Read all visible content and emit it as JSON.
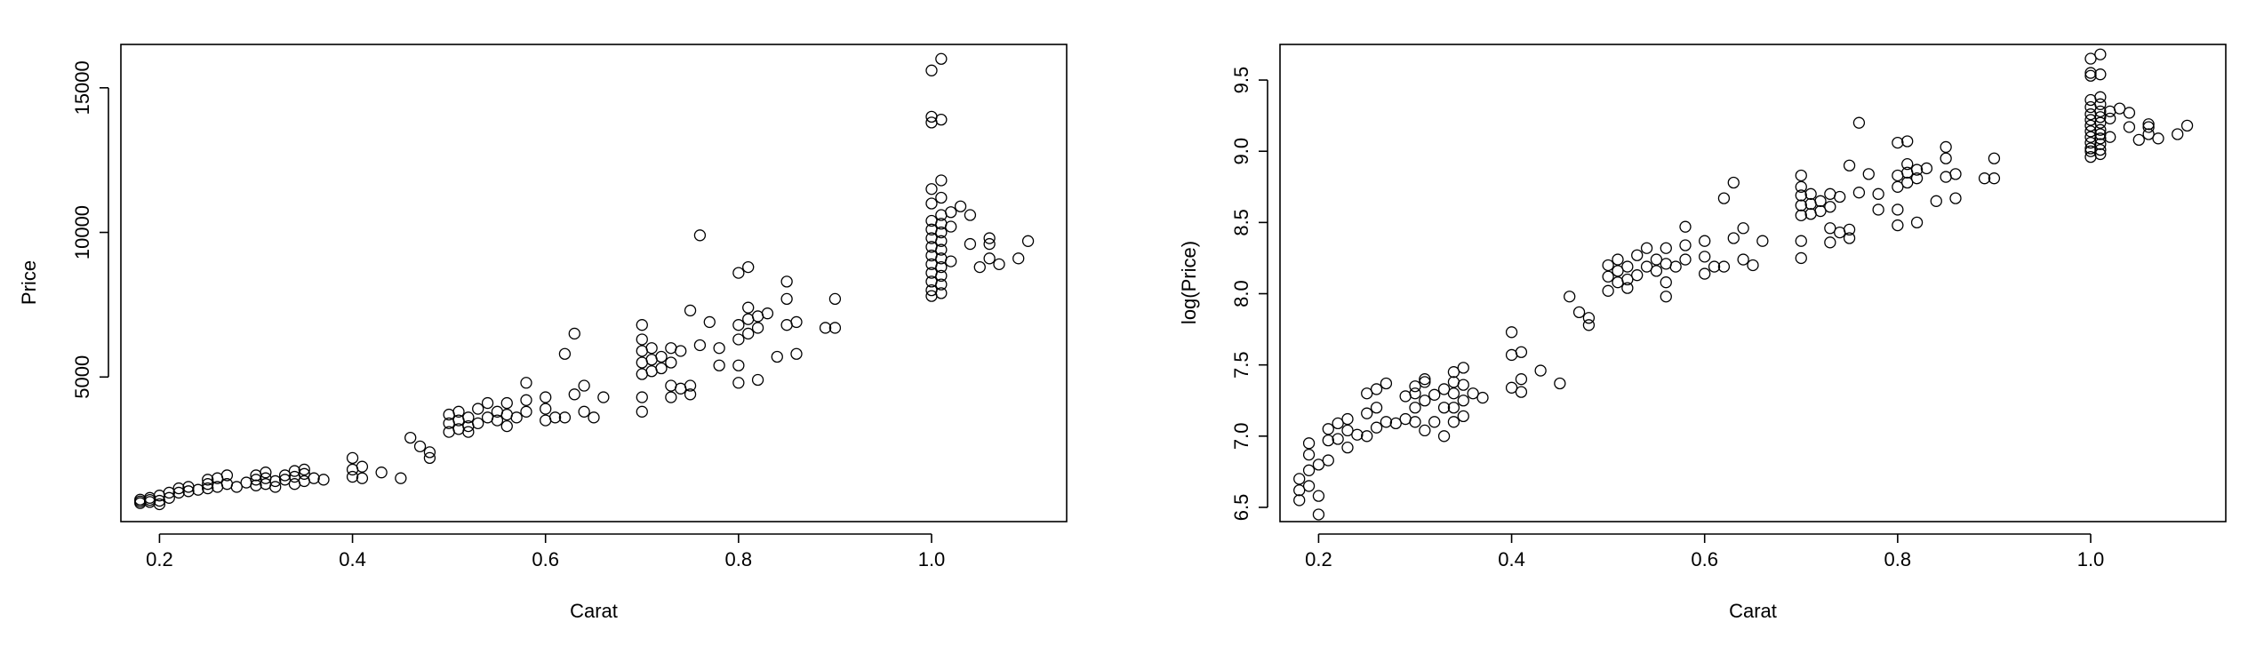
{
  "chart_data": [
    {
      "type": "scatter",
      "title": "",
      "xlabel": "Carat",
      "ylabel": "Price",
      "xlim": [
        0.16,
        1.14
      ],
      "ylim": [
        0,
        16500
      ],
      "xticks": [
        "0.2",
        "0.4",
        "0.6",
        "0.8",
        "1.0"
      ],
      "yticks": [
        "5000",
        "10000",
        "15000"
      ],
      "grid": false,
      "points": [
        [
          0.18,
          700
        ],
        [
          0.18,
          640
        ],
        [
          0.18,
          760
        ],
        [
          0.19,
          680
        ],
        [
          0.19,
          820
        ],
        [
          0.19,
          750
        ],
        [
          0.2,
          720
        ],
        [
          0.2,
          600
        ],
        [
          0.2,
          900
        ],
        [
          0.21,
          1000
        ],
        [
          0.21,
          820
        ],
        [
          0.22,
          1150
        ],
        [
          0.22,
          1000
        ],
        [
          0.23,
          1200
        ],
        [
          0.23,
          1050
        ],
        [
          0.24,
          1100
        ],
        [
          0.25,
          1150
        ],
        [
          0.25,
          1300
        ],
        [
          0.25,
          1450
        ],
        [
          0.26,
          1200
        ],
        [
          0.26,
          1500
        ],
        [
          0.27,
          1300
        ],
        [
          0.27,
          1600
        ],
        [
          0.28,
          1200
        ],
        [
          0.29,
          1350
        ],
        [
          0.3,
          1250
        ],
        [
          0.3,
          1450
        ],
        [
          0.3,
          1600
        ],
        [
          0.31,
          1300
        ],
        [
          0.31,
          1500
        ],
        [
          0.31,
          1700
        ],
        [
          0.32,
          1400
        ],
        [
          0.32,
          1200
        ],
        [
          0.33,
          1450
        ],
        [
          0.33,
          1600
        ],
        [
          0.34,
          1300
        ],
        [
          0.34,
          1550
        ],
        [
          0.34,
          1750
        ],
        [
          0.35,
          1400
        ],
        [
          0.35,
          1650
        ],
        [
          0.35,
          1800
        ],
        [
          0.36,
          1500
        ],
        [
          0.37,
          1450
        ],
        [
          0.4,
          1550
        ],
        [
          0.4,
          1800
        ],
        [
          0.4,
          2200
        ],
        [
          0.41,
          1500
        ],
        [
          0.41,
          1900
        ],
        [
          0.43,
          1700
        ],
        [
          0.45,
          1500
        ],
        [
          0.46,
          2900
        ],
        [
          0.47,
          2600
        ],
        [
          0.48,
          2400
        ],
        [
          0.48,
          2200
        ],
        [
          0.5,
          3100
        ],
        [
          0.5,
          3400
        ],
        [
          0.5,
          3700
        ],
        [
          0.51,
          3200
        ],
        [
          0.51,
          3500
        ],
        [
          0.51,
          3800
        ],
        [
          0.52,
          3100
        ],
        [
          0.52,
          3300
        ],
        [
          0.52,
          3600
        ],
        [
          0.53,
          3400
        ],
        [
          0.53,
          3900
        ],
        [
          0.54,
          3600
        ],
        [
          0.54,
          4100
        ],
        [
          0.55,
          3500
        ],
        [
          0.55,
          3800
        ],
        [
          0.56,
          3300
        ],
        [
          0.56,
          3700
        ],
        [
          0.56,
          4100
        ],
        [
          0.57,
          3600
        ],
        [
          0.58,
          3800
        ],
        [
          0.58,
          4200
        ],
        [
          0.58,
          4800
        ],
        [
          0.6,
          3500
        ],
        [
          0.6,
          3900
        ],
        [
          0.6,
          4300
        ],
        [
          0.61,
          3600
        ],
        [
          0.62,
          3600
        ],
        [
          0.62,
          5800
        ],
        [
          0.63,
          4400
        ],
        [
          0.63,
          6500
        ],
        [
          0.64,
          4700
        ],
        [
          0.64,
          3800
        ],
        [
          0.65,
          3600
        ],
        [
          0.66,
          4300
        ],
        [
          0.7,
          3800
        ],
        [
          0.7,
          4300
        ],
        [
          0.7,
          5100
        ],
        [
          0.7,
          5500
        ],
        [
          0.7,
          5900
        ],
        [
          0.7,
          6300
        ],
        [
          0.7,
          6800
        ],
        [
          0.71,
          5200
        ],
        [
          0.71,
          5600
        ],
        [
          0.71,
          6000
        ],
        [
          0.72,
          5300
        ],
        [
          0.72,
          5700
        ],
        [
          0.73,
          4300
        ],
        [
          0.73,
          4700
        ],
        [
          0.73,
          5500
        ],
        [
          0.73,
          6000
        ],
        [
          0.74,
          4600
        ],
        [
          0.74,
          5900
        ],
        [
          0.75,
          4400
        ],
        [
          0.75,
          4700
        ],
        [
          0.75,
          7300
        ],
        [
          0.76,
          6100
        ],
        [
          0.76,
          9900
        ],
        [
          0.77,
          6900
        ],
        [
          0.78,
          5400
        ],
        [
          0.78,
          6000
        ],
        [
          0.8,
          4800
        ],
        [
          0.8,
          5400
        ],
        [
          0.8,
          6300
        ],
        [
          0.8,
          6800
        ],
        [
          0.8,
          8600
        ],
        [
          0.81,
          6500
        ],
        [
          0.81,
          7000
        ],
        [
          0.81,
          7400
        ],
        [
          0.81,
          8800
        ],
        [
          0.82,
          4900
        ],
        [
          0.82,
          6700
        ],
        [
          0.82,
          7100
        ],
        [
          0.83,
          7200
        ],
        [
          0.84,
          5700
        ],
        [
          0.85,
          6800
        ],
        [
          0.85,
          7700
        ],
        [
          0.85,
          8300
        ],
        [
          0.86,
          5800
        ],
        [
          0.86,
          6900
        ],
        [
          0.89,
          6700
        ],
        [
          0.9,
          6700
        ],
        [
          0.9,
          7700
        ],
        [
          1.0,
          7800
        ],
        [
          1.0,
          8000
        ],
        [
          1.0,
          8300
        ],
        [
          1.0,
          8600
        ],
        [
          1.0,
          8900
        ],
        [
          1.0,
          9200
        ],
        [
          1.0,
          9500
        ],
        [
          1.0,
          9800
        ],
        [
          1.0,
          10100
        ],
        [
          1.0,
          10400
        ],
        [
          1.0,
          11000
        ],
        [
          1.0,
          11500
        ],
        [
          1.0,
          13800
        ],
        [
          1.0,
          14000
        ],
        [
          1.0,
          15600
        ],
        [
          1.01,
          7900
        ],
        [
          1.01,
          8200
        ],
        [
          1.01,
          8500
        ],
        [
          1.01,
          8800
        ],
        [
          1.01,
          9100
        ],
        [
          1.01,
          9400
        ],
        [
          1.01,
          9700
        ],
        [
          1.01,
          10000
        ],
        [
          1.01,
          10300
        ],
        [
          1.01,
          10600
        ],
        [
          1.01,
          11200
        ],
        [
          1.01,
          11800
        ],
        [
          1.01,
          13900
        ],
        [
          1.01,
          16000
        ],
        [
          1.02,
          9000
        ],
        [
          1.02,
          10200
        ],
        [
          1.02,
          10700
        ],
        [
          1.03,
          10900
        ],
        [
          1.04,
          10600
        ],
        [
          1.04,
          9600
        ],
        [
          1.05,
          8800
        ],
        [
          1.06,
          9800
        ],
        [
          1.06,
          9600
        ],
        [
          1.06,
          9100
        ],
        [
          1.07,
          8900
        ],
        [
          1.09,
          9100
        ],
        [
          1.1,
          9700
        ]
      ]
    },
    {
      "type": "scatter",
      "title": "",
      "xlabel": "Carat",
      "ylabel": "log(Price)",
      "xlim": [
        0.16,
        1.14
      ],
      "ylim": [
        6.4,
        9.75
      ],
      "xticks": [
        "0.2",
        "0.4",
        "0.6",
        "0.8",
        "1.0"
      ],
      "yticks": [
        "6.5",
        "7.0",
        "7.5",
        "8.0",
        "8.5",
        "9.0",
        "9.5"
      ],
      "grid": false,
      "points": [
        [
          0.18,
          6.55
        ],
        [
          0.18,
          6.62
        ],
        [
          0.18,
          6.7
        ],
        [
          0.19,
          6.65
        ],
        [
          0.19,
          6.76
        ],
        [
          0.19,
          6.87
        ],
        [
          0.19,
          6.95
        ],
        [
          0.2,
          6.45
        ],
        [
          0.2,
          6.58
        ],
        [
          0.2,
          6.8
        ],
        [
          0.21,
          6.83
        ],
        [
          0.21,
          6.97
        ],
        [
          0.21,
          7.05
        ],
        [
          0.22,
          6.98
        ],
        [
          0.22,
          7.09
        ],
        [
          0.23,
          6.92
        ],
        [
          0.23,
          7.04
        ],
        [
          0.23,
          7.12
        ],
        [
          0.24,
          7.01
        ],
        [
          0.25,
          7.0
        ],
        [
          0.25,
          7.16
        ],
        [
          0.25,
          7.3
        ],
        [
          0.26,
          7.06
        ],
        [
          0.26,
          7.2
        ],
        [
          0.26,
          7.33
        ],
        [
          0.27,
          7.1
        ],
        [
          0.27,
          7.37
        ],
        [
          0.28,
          7.09
        ],
        [
          0.29,
          7.12
        ],
        [
          0.29,
          7.28
        ],
        [
          0.3,
          7.1
        ],
        [
          0.3,
          7.2
        ],
        [
          0.3,
          7.3
        ],
        [
          0.3,
          7.35
        ],
        [
          0.31,
          7.04
        ],
        [
          0.31,
          7.25
        ],
        [
          0.31,
          7.38
        ],
        [
          0.31,
          7.4
        ],
        [
          0.32,
          7.1
        ],
        [
          0.32,
          7.29
        ],
        [
          0.33,
          7.0
        ],
        [
          0.33,
          7.2
        ],
        [
          0.33,
          7.33
        ],
        [
          0.34,
          7.1
        ],
        [
          0.34,
          7.2
        ],
        [
          0.34,
          7.3
        ],
        [
          0.34,
          7.38
        ],
        [
          0.34,
          7.45
        ],
        [
          0.35,
          7.14
        ],
        [
          0.35,
          7.25
        ],
        [
          0.35,
          7.36
        ],
        [
          0.35,
          7.48
        ],
        [
          0.36,
          7.3
        ],
        [
          0.37,
          7.27
        ],
        [
          0.4,
          7.34
        ],
        [
          0.4,
          7.57
        ],
        [
          0.4,
          7.73
        ],
        [
          0.41,
          7.31
        ],
        [
          0.41,
          7.4
        ],
        [
          0.41,
          7.59
        ],
        [
          0.43,
          7.46
        ],
        [
          0.45,
          7.37
        ],
        [
          0.46,
          7.98
        ],
        [
          0.47,
          7.87
        ],
        [
          0.48,
          7.78
        ],
        [
          0.48,
          7.83
        ],
        [
          0.5,
          8.02
        ],
        [
          0.5,
          8.12
        ],
        [
          0.5,
          8.2
        ],
        [
          0.51,
          8.08
        ],
        [
          0.51,
          8.16
        ],
        [
          0.51,
          8.24
        ],
        [
          0.52,
          8.04
        ],
        [
          0.52,
          8.1
        ],
        [
          0.52,
          8.19
        ],
        [
          0.53,
          8.13
        ],
        [
          0.53,
          8.27
        ],
        [
          0.54,
          8.19
        ],
        [
          0.54,
          8.32
        ],
        [
          0.55,
          8.16
        ],
        [
          0.55,
          8.24
        ],
        [
          0.56,
          7.98
        ],
        [
          0.56,
          8.08
        ],
        [
          0.56,
          8.21
        ],
        [
          0.56,
          8.32
        ],
        [
          0.57,
          8.19
        ],
        [
          0.58,
          8.24
        ],
        [
          0.58,
          8.34
        ],
        [
          0.58,
          8.47
        ],
        [
          0.6,
          8.14
        ],
        [
          0.6,
          8.26
        ],
        [
          0.6,
          8.37
        ],
        [
          0.61,
          8.19
        ],
        [
          0.62,
          8.19
        ],
        [
          0.62,
          8.67
        ],
        [
          0.63,
          8.39
        ],
        [
          0.63,
          8.78
        ],
        [
          0.64,
          8.46
        ],
        [
          0.64,
          8.24
        ],
        [
          0.65,
          8.2
        ],
        [
          0.66,
          8.37
        ],
        [
          0.7,
          8.25
        ],
        [
          0.7,
          8.37
        ],
        [
          0.7,
          8.55
        ],
        [
          0.7,
          8.62
        ],
        [
          0.7,
          8.69
        ],
        [
          0.7,
          8.75
        ],
        [
          0.7,
          8.83
        ],
        [
          0.71,
          8.56
        ],
        [
          0.71,
          8.63
        ],
        [
          0.71,
          8.7
        ],
        [
          0.72,
          8.58
        ],
        [
          0.72,
          8.65
        ],
        [
          0.73,
          8.36
        ],
        [
          0.73,
          8.46
        ],
        [
          0.73,
          8.61
        ],
        [
          0.73,
          8.7
        ],
        [
          0.74,
          8.43
        ],
        [
          0.74,
          8.68
        ],
        [
          0.75,
          8.39
        ],
        [
          0.75,
          8.45
        ],
        [
          0.75,
          8.9
        ],
        [
          0.76,
          8.71
        ],
        [
          0.76,
          9.2
        ],
        [
          0.77,
          8.84
        ],
        [
          0.78,
          8.59
        ],
        [
          0.78,
          8.7
        ],
        [
          0.8,
          8.48
        ],
        [
          0.8,
          8.59
        ],
        [
          0.8,
          8.75
        ],
        [
          0.8,
          8.83
        ],
        [
          0.8,
          9.06
        ],
        [
          0.81,
          8.78
        ],
        [
          0.81,
          8.85
        ],
        [
          0.81,
          8.91
        ],
        [
          0.81,
          9.07
        ],
        [
          0.82,
          8.5
        ],
        [
          0.82,
          8.81
        ],
        [
          0.82,
          8.87
        ],
        [
          0.83,
          8.88
        ],
        [
          0.84,
          8.65
        ],
        [
          0.85,
          8.82
        ],
        [
          0.85,
          8.95
        ],
        [
          0.85,
          9.03
        ],
        [
          0.86,
          8.67
        ],
        [
          0.86,
          8.84
        ],
        [
          0.89,
          8.81
        ],
        [
          0.9,
          8.81
        ],
        [
          0.9,
          8.95
        ],
        [
          1.0,
          8.96
        ],
        [
          1.0,
          9.0
        ],
        [
          1.0,
          9.02
        ],
        [
          1.0,
          9.06
        ],
        [
          1.0,
          9.1
        ],
        [
          1.0,
          9.14
        ],
        [
          1.0,
          9.18
        ],
        [
          1.0,
          9.22
        ],
        [
          1.0,
          9.26
        ],
        [
          1.0,
          9.31
        ],
        [
          1.0,
          9.36
        ],
        [
          1.0,
          9.53
        ],
        [
          1.0,
          9.55
        ],
        [
          1.0,
          9.65
        ],
        [
          1.01,
          8.98
        ],
        [
          1.01,
          9.01
        ],
        [
          1.01,
          9.05
        ],
        [
          1.01,
          9.09
        ],
        [
          1.01,
          9.12
        ],
        [
          1.01,
          9.15
        ],
        [
          1.01,
          9.2
        ],
        [
          1.01,
          9.24
        ],
        [
          1.01,
          9.28
        ],
        [
          1.01,
          9.33
        ],
        [
          1.01,
          9.38
        ],
        [
          1.01,
          9.54
        ],
        [
          1.01,
          9.68
        ],
        [
          1.02,
          9.1
        ],
        [
          1.02,
          9.23
        ],
        [
          1.02,
          9.28
        ],
        [
          1.03,
          9.3
        ],
        [
          1.04,
          9.27
        ],
        [
          1.04,
          9.17
        ],
        [
          1.05,
          9.08
        ],
        [
          1.06,
          9.19
        ],
        [
          1.06,
          9.17
        ],
        [
          1.06,
          9.12
        ],
        [
          1.07,
          9.09
        ],
        [
          1.09,
          9.12
        ],
        [
          1.1,
          9.18
        ]
      ]
    }
  ]
}
